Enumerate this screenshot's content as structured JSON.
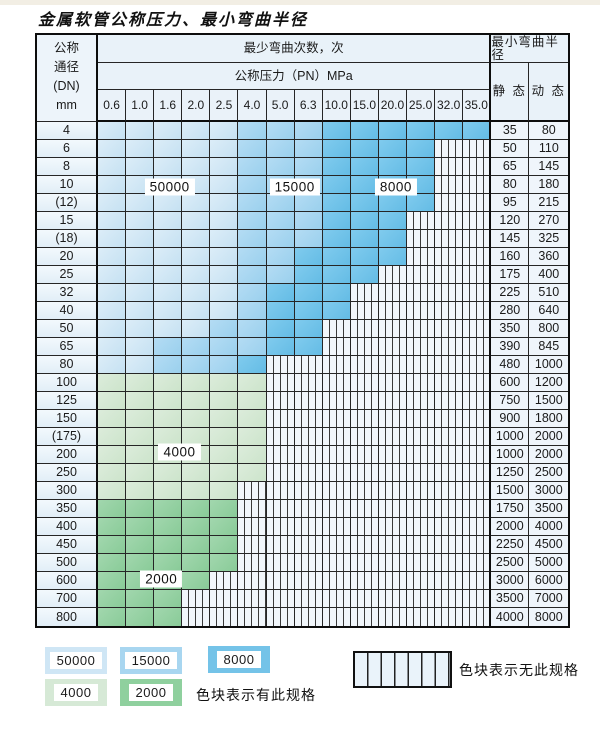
{
  "title": "金属软管公称压力、最小弯曲半径",
  "table": {
    "header": {
      "dn_lines": [
        "公称",
        "通径",
        "(DN)",
        "mm"
      ],
      "cycles_title": "最少弯曲次数，次",
      "pressure_title": "公称压力（PN）MPa",
      "radius_title": "最小弯曲半径",
      "static_label": "静 态",
      "dynamic_label": "动 态",
      "pressures": [
        "0.6",
        "1.0",
        "1.6",
        "2.0",
        "2.5",
        "4.0",
        "5.0",
        "6.3",
        "10.0",
        "15.0",
        "20.0",
        "25.0",
        "32.0",
        "35.0"
      ]
    },
    "rows": [
      {
        "dn": "4",
        "static": "35",
        "dynamic": "80",
        "cells": [
          "50",
          "50",
          "50",
          "50",
          "50",
          "15",
          "15",
          "15",
          "8",
          "8",
          "8",
          "8",
          "8",
          "8"
        ]
      },
      {
        "dn": "6",
        "static": "50",
        "dynamic": "110",
        "cells": [
          "50",
          "50",
          "50",
          "50",
          "50",
          "15",
          "15",
          "15",
          "8",
          "8",
          "8",
          "8",
          "x",
          "x"
        ]
      },
      {
        "dn": "8",
        "static": "65",
        "dynamic": "145",
        "cells": [
          "50",
          "50",
          "50",
          "50",
          "50",
          "15",
          "15",
          "15",
          "8",
          "8",
          "8",
          "8",
          "x",
          "x"
        ]
      },
      {
        "dn": "10",
        "static": "80",
        "dynamic": "180",
        "cells": [
          "50",
          "50",
          "50",
          "50",
          "50",
          "15",
          "15",
          "15",
          "8",
          "8",
          "8",
          "8",
          "x",
          "x"
        ]
      },
      {
        "dn": "(12)",
        "static": "95",
        "dynamic": "215",
        "cells": [
          "50",
          "50",
          "50",
          "50",
          "50",
          "15",
          "15",
          "15",
          "8",
          "8",
          "8",
          "8",
          "x",
          "x"
        ]
      },
      {
        "dn": "15",
        "static": "120",
        "dynamic": "270",
        "cells": [
          "50",
          "50",
          "50",
          "50",
          "50",
          "15",
          "15",
          "15",
          "8",
          "8",
          "8",
          "x",
          "x",
          "x"
        ]
      },
      {
        "dn": "(18)",
        "static": "145",
        "dynamic": "325",
        "cells": [
          "50",
          "50",
          "50",
          "50",
          "50",
          "15",
          "15",
          "15",
          "8",
          "8",
          "8",
          "x",
          "x",
          "x"
        ]
      },
      {
        "dn": "20",
        "static": "160",
        "dynamic": "360",
        "cells": [
          "50",
          "50",
          "50",
          "50",
          "50",
          "15",
          "15",
          "8",
          "8",
          "8",
          "8",
          "x",
          "x",
          "x"
        ]
      },
      {
        "dn": "25",
        "static": "175",
        "dynamic": "400",
        "cells": [
          "50",
          "50",
          "50",
          "50",
          "50",
          "15",
          "15",
          "8",
          "8",
          "8",
          "x",
          "x",
          "x",
          "x"
        ]
      },
      {
        "dn": "32",
        "static": "225",
        "dynamic": "510",
        "cells": [
          "50",
          "50",
          "50",
          "50",
          "50",
          "15",
          "8",
          "8",
          "8",
          "x",
          "x",
          "x",
          "x",
          "x"
        ]
      },
      {
        "dn": "40",
        "static": "280",
        "dynamic": "640",
        "cells": [
          "50",
          "50",
          "50",
          "50",
          "50",
          "15",
          "8",
          "8",
          "8",
          "x",
          "x",
          "x",
          "x",
          "x"
        ]
      },
      {
        "dn": "50",
        "static": "350",
        "dynamic": "800",
        "cells": [
          "50",
          "50",
          "50",
          "50",
          "15",
          "15",
          "8",
          "8",
          "x",
          "x",
          "x",
          "x",
          "x",
          "x"
        ]
      },
      {
        "dn": "65",
        "static": "390",
        "dynamic": "845",
        "cells": [
          "50",
          "50",
          "15",
          "15",
          "15",
          "15",
          "8",
          "8",
          "x",
          "x",
          "x",
          "x",
          "x",
          "x"
        ]
      },
      {
        "dn": "80",
        "static": "480",
        "dynamic": "1000",
        "cells": [
          "50",
          "50",
          "15",
          "15",
          "15",
          "8",
          "x",
          "x",
          "x",
          "x",
          "x",
          "x",
          "x",
          "x"
        ]
      },
      {
        "dn": "100",
        "static": "600",
        "dynamic": "1200",
        "cells": [
          "4",
          "4",
          "4",
          "4",
          "4",
          "4",
          "x",
          "x",
          "x",
          "x",
          "x",
          "x",
          "x",
          "x"
        ]
      },
      {
        "dn": "125",
        "static": "750",
        "dynamic": "1500",
        "cells": [
          "4",
          "4",
          "4",
          "4",
          "4",
          "4",
          "x",
          "x",
          "x",
          "x",
          "x",
          "x",
          "x",
          "x"
        ]
      },
      {
        "dn": "150",
        "static": "900",
        "dynamic": "1800",
        "cells": [
          "4",
          "4",
          "4",
          "4",
          "4",
          "4",
          "x",
          "x",
          "x",
          "x",
          "x",
          "x",
          "x",
          "x"
        ]
      },
      {
        "dn": "(175)",
        "static": "1000",
        "dynamic": "2000",
        "cells": [
          "4",
          "4",
          "4",
          "4",
          "4",
          "4",
          "x",
          "x",
          "x",
          "x",
          "x",
          "x",
          "x",
          "x"
        ]
      },
      {
        "dn": "200",
        "static": "1000",
        "dynamic": "2000",
        "cells": [
          "4",
          "4",
          "4",
          "4",
          "4",
          "4",
          "x",
          "x",
          "x",
          "x",
          "x",
          "x",
          "x",
          "x"
        ]
      },
      {
        "dn": "250",
        "static": "1250",
        "dynamic": "2500",
        "cells": [
          "4",
          "4",
          "4",
          "4",
          "4",
          "4",
          "x",
          "x",
          "x",
          "x",
          "x",
          "x",
          "x",
          "x"
        ]
      },
      {
        "dn": "300",
        "static": "1500",
        "dynamic": "3000",
        "cells": [
          "4",
          "4",
          "4",
          "4",
          "4",
          "x",
          "x",
          "x",
          "x",
          "x",
          "x",
          "x",
          "x",
          "x"
        ]
      },
      {
        "dn": "350",
        "static": "1750",
        "dynamic": "3500",
        "cells": [
          "2",
          "2",
          "2",
          "2",
          "2",
          "x",
          "x",
          "x",
          "x",
          "x",
          "x",
          "x",
          "x",
          "x"
        ]
      },
      {
        "dn": "400",
        "static": "2000",
        "dynamic": "4000",
        "cells": [
          "2",
          "2",
          "2",
          "2",
          "2",
          "x",
          "x",
          "x",
          "x",
          "x",
          "x",
          "x",
          "x",
          "x"
        ]
      },
      {
        "dn": "450",
        "static": "2250",
        "dynamic": "4500",
        "cells": [
          "2",
          "2",
          "2",
          "2",
          "2",
          "x",
          "x",
          "x",
          "x",
          "x",
          "x",
          "x",
          "x",
          "x"
        ]
      },
      {
        "dn": "500",
        "static": "2500",
        "dynamic": "5000",
        "cells": [
          "2",
          "2",
          "2",
          "2",
          "2",
          "x",
          "x",
          "x",
          "x",
          "x",
          "x",
          "x",
          "x",
          "x"
        ]
      },
      {
        "dn": "600",
        "static": "3000",
        "dynamic": "6000",
        "cells": [
          "2",
          "2",
          "2",
          "2",
          "x",
          "x",
          "x",
          "x",
          "x",
          "x",
          "x",
          "x",
          "x",
          "x"
        ]
      },
      {
        "dn": "700",
        "static": "3500",
        "dynamic": "7000",
        "cells": [
          "2",
          "2",
          "2",
          "x",
          "x",
          "x",
          "x",
          "x",
          "x",
          "x",
          "x",
          "x",
          "x",
          "x"
        ]
      },
      {
        "dn": "800",
        "static": "4000",
        "dynamic": "8000",
        "cells": [
          "2",
          "2",
          "2",
          "x",
          "x",
          "x",
          "x",
          "x",
          "x",
          "x",
          "x",
          "x",
          "x",
          "x"
        ]
      }
    ],
    "overlay_labels": [
      {
        "text": "50000",
        "col": 2.55,
        "row": 3.6
      },
      {
        "text": "15000",
        "col": 7.0,
        "row": 3.6
      },
      {
        "text": "8000",
        "col": 10.6,
        "row": 3.6
      },
      {
        "text": "4000",
        "col": 2.9,
        "row": 18.35
      },
      {
        "text": "2000",
        "col": 2.25,
        "row": 25.4
      }
    ]
  },
  "legend": {
    "items": [
      {
        "label": "50000",
        "band": "50"
      },
      {
        "label": "15000",
        "band": "15"
      },
      {
        "label": "8000",
        "band": "8"
      },
      {
        "label": "4000",
        "band": "4"
      },
      {
        "label": "2000",
        "band": "2"
      }
    ],
    "available_text": "色块表示有此规格",
    "unavailable_text": "色块表示无此规格"
  },
  "colors": {
    "band_50000": "#cfe6f5",
    "band_15000": "#a8d6f0",
    "band_8000": "#74c3e8",
    "band_4000": "#d6e9d6",
    "band_2000": "#8fd09e",
    "hatch_line": "#3a3a3a",
    "grid_line": "#262626"
  }
}
